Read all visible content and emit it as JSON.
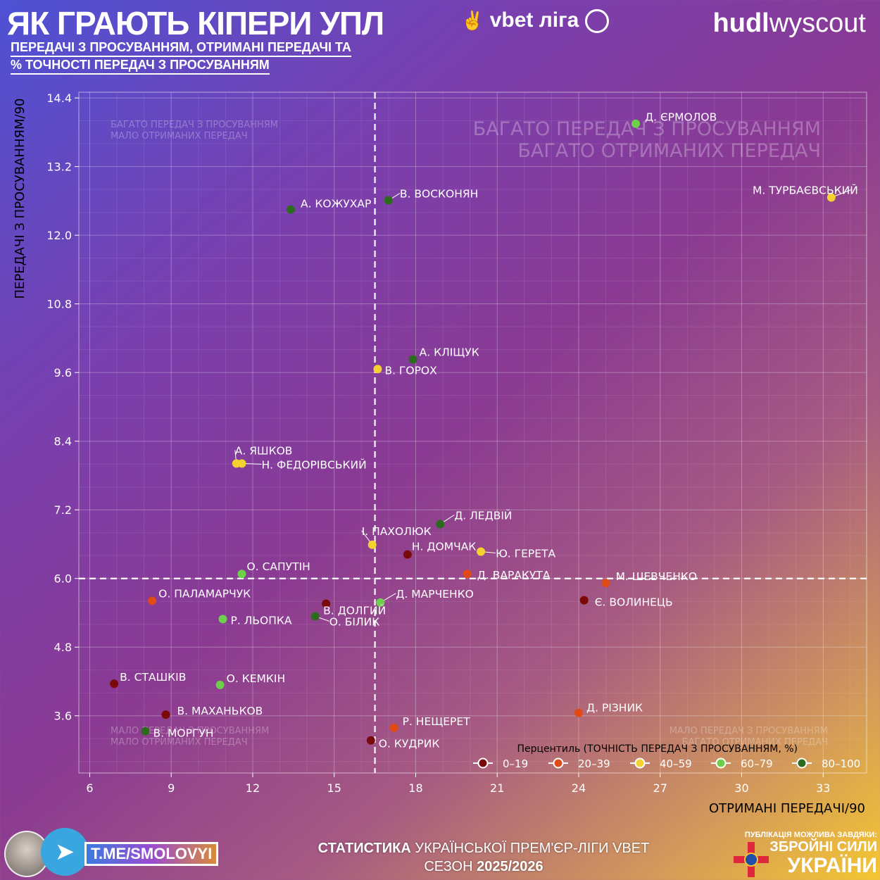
{
  "header": {
    "title": "ЯК ГРАЮТЬ КІПЕРИ УПЛ",
    "league_logo": "vbet ліга",
    "subtitle_line1": "ПЕРЕДАЧІ З ПРОСУВАННЯМ, ОТРИМАНІ ПЕРЕДАЧІ ТА",
    "subtitle_line2": "% ТОЧНОСТІ ПЕРЕДАЧ З ПРОСУВАННЯМ",
    "provider_logo_bold": "hudl",
    "provider_logo_light": "wyscout"
  },
  "chart_data": {
    "type": "scatter",
    "xlabel": "ОТРИМАНІ ПЕРЕДАЧІ/90",
    "ylabel": "ПЕРЕДАЧІ З ПРОСУВАННЯМ/90",
    "xlim": [
      5.6,
      34.6
    ],
    "ylim": [
      2.6,
      14.5
    ],
    "xticks": [
      6,
      9,
      12,
      15,
      18,
      21,
      24,
      27,
      30,
      33
    ],
    "yticks": [
      3.6,
      4.8,
      6.0,
      7.2,
      8.4,
      9.6,
      10.8,
      12.0,
      13.2,
      14.4
    ],
    "ytick_labels": [
      "3.6",
      "4.8",
      "6.0",
      "7.2",
      "8.4",
      "9.6",
      "10.8",
      "12.0",
      "13.2",
      "14.4"
    ],
    "grid": true,
    "reference_lines": {
      "x": 16.5,
      "y": 6.0
    },
    "quadrant_labels": {
      "top_left": [
        "БАГАТО ПЕРЕДАЧ З ПРОСУВАННЯМ",
        "МАЛО ОТРИМАНИХ ПЕРЕДАЧ"
      ],
      "top_right": [
        "БАГАТО ПЕРЕДАЧ З ПРОСУВАННЯМ",
        "БАГАТО ОТРИМАНИХ ПЕРЕДАЧ"
      ],
      "bottom_left": [
        "МАЛО ПЕРЕДАЧ З ПРОСУВАННЯМ",
        "МАЛО ОТРИМАНИХ ПЕРЕДАЧ"
      ],
      "bottom_right": [
        "МАЛО ПЕРЕДАЧ З ПРОСУВАННЯМ",
        "БАГАТО ОТРИМАНИХ ПЕРЕДАЧ"
      ]
    },
    "legend": {
      "title": "Перцентиль (ТОЧНІСТЬ ПЕРЕДАЧ З ПРОСУВАННЯМ, %)",
      "placement": "bottom-right",
      "items": [
        {
          "label": "0–19",
          "color": "#7a0a0a"
        },
        {
          "label": "20–39",
          "color": "#e04a17"
        },
        {
          "label": "40–59",
          "color": "#f5d130"
        },
        {
          "label": "60–79",
          "color": "#6cd04a"
        },
        {
          "label": "80–100",
          "color": "#2e6a1e"
        }
      ]
    },
    "points": [
      {
        "name": "Д. ЄРМОЛОВ",
        "x": 26.1,
        "y": 13.95,
        "group": 3
      },
      {
        "name": "М. ТУРБАЄВСЬКИЙ",
        "x": 33.3,
        "y": 12.66,
        "group": 2
      },
      {
        "name": "В. ВОСКОНЯН",
        "x": 17.0,
        "y": 12.61,
        "group": 4
      },
      {
        "name": "А. КОЖУХАР",
        "x": 13.4,
        "y": 12.45,
        "group": 4
      },
      {
        "name": "А. КЛІЩУК",
        "x": 17.9,
        "y": 9.83,
        "group": 4
      },
      {
        "name": "В. ГОРОХ",
        "x": 16.6,
        "y": 9.66,
        "group": 2
      },
      {
        "name": "А. ЯШКОВ",
        "x": 11.4,
        "y": 8.01,
        "group": 2
      },
      {
        "name": "Н. ФЕДОРІВСЬКИЙ",
        "x": 11.6,
        "y": 8.01,
        "group": 2
      },
      {
        "name": "Д. ЛЕДВІЙ",
        "x": 18.9,
        "y": 6.95,
        "group": 4
      },
      {
        "name": "І. ПАХОЛЮК",
        "x": 16.4,
        "y": 6.59,
        "group": 2
      },
      {
        "name": "Н. ДОМЧАК",
        "x": 17.7,
        "y": 6.42,
        "group": 0
      },
      {
        "name": "Ю. ГЕРЕТА",
        "x": 20.4,
        "y": 6.47,
        "group": 2
      },
      {
        "name": "Д. ВАРАКУТА",
        "x": 19.9,
        "y": 6.08,
        "group": 1
      },
      {
        "name": "О. САПУТІН",
        "x": 11.6,
        "y": 6.08,
        "group": 3
      },
      {
        "name": "М. ШЕВЧЕНКО",
        "x": 25.0,
        "y": 5.92,
        "group": 1
      },
      {
        "name": "Є. ВОЛИНЕЦЬ",
        "x": 24.2,
        "y": 5.62,
        "group": 0
      },
      {
        "name": "О. ПАЛАМАРЧУК",
        "x": 8.3,
        "y": 5.61,
        "group": 1
      },
      {
        "name": "Д. МАРЧЕНКО",
        "x": 16.7,
        "y": 5.58,
        "group": 3
      },
      {
        "name": "В. ДОЛГИЙ",
        "x": 14.7,
        "y": 5.56,
        "group": 0
      },
      {
        "name": "О. БІЛИК",
        "x": 14.3,
        "y": 5.34,
        "group": 4
      },
      {
        "name": "Р. ЛЬОПКА",
        "x": 10.9,
        "y": 5.29,
        "group": 3
      },
      {
        "name": "В. СТАШКІВ",
        "x": 6.9,
        "y": 4.16,
        "group": 0
      },
      {
        "name": "О. КЕМКІН",
        "x": 10.8,
        "y": 4.14,
        "group": 3
      },
      {
        "name": "В. МАХАНЬКОВ",
        "x": 8.8,
        "y": 3.62,
        "group": 0
      },
      {
        "name": "В. МОРГУН",
        "x": 8.05,
        "y": 3.33,
        "group": 4
      },
      {
        "name": "Д. РІЗНИК",
        "x": 24.0,
        "y": 3.65,
        "group": 1
      },
      {
        "name": "Р. НЕЩЕРЕТ",
        "x": 17.2,
        "y": 3.39,
        "group": 1
      },
      {
        "name": "О. КУДРИК",
        "x": 16.35,
        "y": 3.17,
        "group": 0
      }
    ]
  },
  "footer": {
    "telegram": "T.ME/SMOLOVYI",
    "line1_bold": "СТАТИСТИКА",
    "line1_rest": " УКРАЇНСЬКОЇ ПРЕМ'ЄР-ЛІГИ VBET",
    "line2_label": "СЕЗОН ",
    "line2_value": "2025/2026",
    "zsu_caption": "ПУБЛІКАЦІЯ МОЖЛИВА ЗАВДЯКИ:",
    "zsu_line1": "ЗБРОЙНІ СИЛИ",
    "zsu_line2": "УКРАЇНИ"
  }
}
